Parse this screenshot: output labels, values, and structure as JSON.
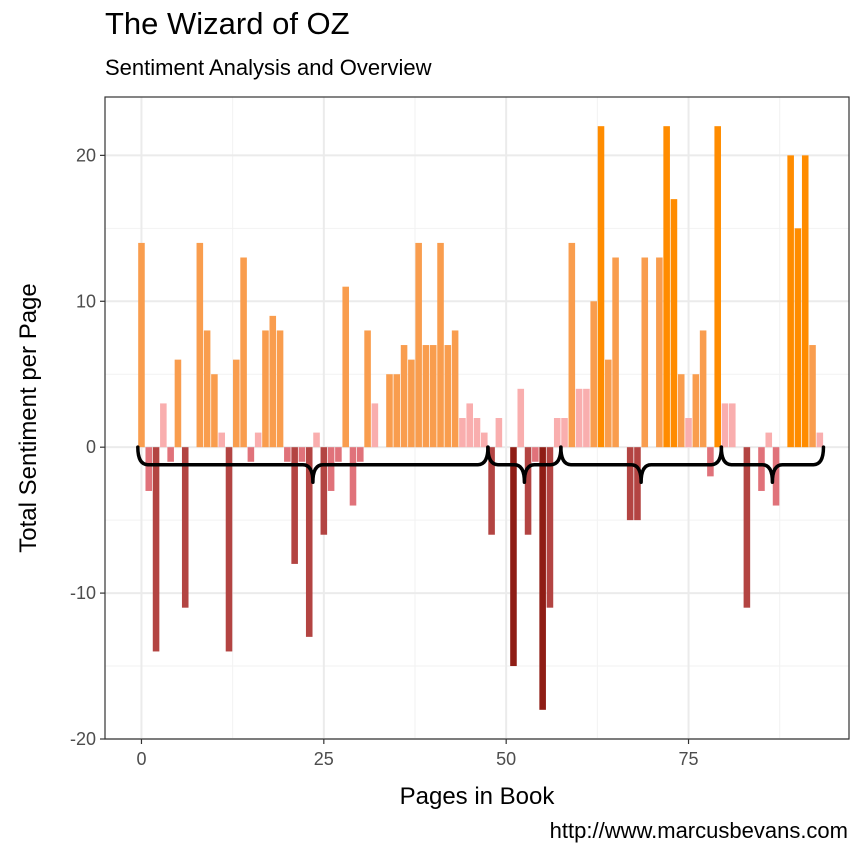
{
  "header": {
    "title": "The Wizard of OZ",
    "subtitle": "Sentiment Analysis and Overview"
  },
  "caption": "http://www.marcusbevans.com",
  "colors": {
    "strong_positive": "#ff8c00",
    "positive": "#f99d4e",
    "weak_positive": "#f9aeae",
    "weak_negative": "#e0727a",
    "negative": "#b34442",
    "strong_negative": "#8f1d15",
    "grid_major": "#ebebeb",
    "grid_minor": "#f2f2f2",
    "panel_border": "#333333",
    "brace": "#000000"
  },
  "chart_data": {
    "type": "bar",
    "xlabel": "Pages in Book",
    "ylabel": "Total Sentiment per Page",
    "xlim": [
      -5,
      97
    ],
    "ylim": [
      -20,
      24
    ],
    "x_ticks": [
      0,
      25,
      50,
      75
    ],
    "y_ticks": [
      -20,
      -10,
      0,
      10,
      20
    ],
    "grid": true,
    "x": [
      0,
      1,
      2,
      3,
      4,
      5,
      6,
      7,
      8,
      9,
      10,
      11,
      12,
      13,
      14,
      15,
      16,
      17,
      18,
      19,
      20,
      21,
      22,
      23,
      24,
      25,
      26,
      27,
      28,
      29,
      30,
      31,
      32,
      33,
      34,
      35,
      36,
      37,
      38,
      39,
      40,
      41,
      42,
      43,
      44,
      45,
      46,
      47,
      48,
      49,
      50,
      51,
      52,
      53,
      54,
      55,
      56,
      57,
      58,
      59,
      60,
      61,
      62,
      63,
      64,
      65,
      66,
      67,
      68,
      69,
      70,
      71,
      72,
      73,
      74,
      75,
      76,
      77,
      78,
      79,
      80,
      81,
      82,
      83,
      84,
      85,
      86,
      87,
      88,
      89,
      90,
      91,
      92,
      93
    ],
    "values": [
      14,
      -3,
      -14,
      3,
      -1,
      6,
      -11,
      0,
      14,
      8,
      5,
      1,
      -14,
      6,
      13,
      -1,
      1,
      8,
      9,
      8,
      -1,
      -8,
      -1,
      -13,
      1,
      -6,
      -3,
      -1,
      11,
      -4,
      -1,
      8,
      3,
      0,
      5,
      5,
      7,
      6,
      14,
      7,
      7,
      14,
      7,
      8,
      2,
      3,
      2,
      1,
      -6,
      2,
      0,
      -15,
      4,
      -6,
      -1,
      -18,
      -11,
      2,
      2,
      14,
      4,
      4,
      10,
      22,
      6,
      13,
      0,
      -5,
      -5,
      13,
      0,
      13,
      22,
      17,
      5,
      2,
      5,
      8,
      -2,
      22,
      3,
      3,
      0,
      -11,
      0,
      -3,
      1,
      -4,
      0,
      20,
      15,
      20,
      7,
      1
    ],
    "sections": [
      {
        "from": -0.5,
        "to": 47.5
      },
      {
        "from": 47.5,
        "to": 57.5
      },
      {
        "from": 57.5,
        "to": 79.5
      },
      {
        "from": 79.5,
        "to": 93.5
      }
    ]
  }
}
